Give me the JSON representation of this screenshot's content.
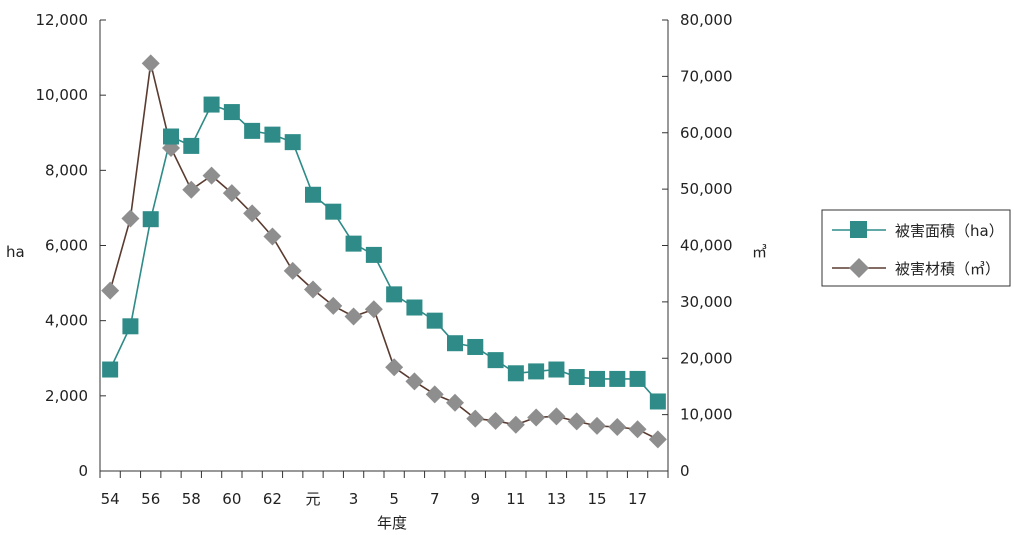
{
  "chart_data": {
    "type": "line",
    "categories": [
      "54",
      "55",
      "56",
      "57",
      "58",
      "59",
      "60",
      "61",
      "62",
      "63",
      "元",
      "2",
      "3",
      "4",
      "5",
      "6",
      "7",
      "8",
      "9",
      "10",
      "11",
      "12",
      "13",
      "14",
      "15",
      "16",
      "17",
      "18"
    ],
    "x_tick_labels": [
      "54",
      "56",
      "58",
      "60",
      "62",
      "元",
      "3",
      "5",
      "7",
      "9",
      "11",
      "13",
      "15",
      "17"
    ],
    "xlabel": "年度",
    "ylabel_left": "ha",
    "ylabel_right": "㎥",
    "ylim_left": [
      0,
      12000
    ],
    "ylim_right": [
      0,
      80000
    ],
    "yticks_left": [
      "0",
      "2,000",
      "4,000",
      "6,000",
      "8,000",
      "10,000",
      "12,000"
    ],
    "yticks_right": [
      "0",
      "10,000",
      "20,000",
      "30,000",
      "40,000",
      "50,000",
      "60,000",
      "70,000",
      "80,000"
    ],
    "legend_position": "right",
    "grid": false,
    "series": [
      {
        "name": "被害面積（ha）",
        "axis": "left",
        "marker": "square",
        "color": "#2e8b88",
        "values": [
          2700,
          3850,
          6700,
          8900,
          8650,
          9750,
          9550,
          9050,
          8950,
          8750,
          7350,
          6900,
          6050,
          5750,
          4700,
          4350,
          4000,
          3400,
          3300,
          2950,
          2600,
          2650,
          2700,
          2500,
          2450,
          2450,
          2450,
          1850
        ]
      },
      {
        "name": "被害材積（㎥）",
        "axis": "right",
        "marker": "diamond",
        "color": "#5a3b30",
        "marker_color": "#8e8e8e",
        "values": [
          32000,
          44800,
          72300,
          57300,
          49900,
          52400,
          49300,
          45700,
          41600,
          35500,
          32200,
          29300,
          27400,
          28700,
          18400,
          15900,
          13600,
          12100,
          9300,
          8900,
          8200,
          9500,
          9700,
          8800,
          8000,
          7800,
          7400,
          5600
        ]
      }
    ]
  }
}
